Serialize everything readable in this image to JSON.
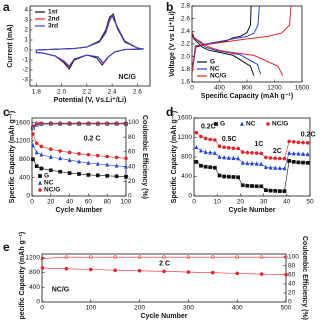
{
  "chart_data": [
    {
      "type": "line",
      "panel": "a",
      "xlabel": "Potential (V, Vs.Li⁺/Li)",
      "ylabel": "Current (mA)",
      "xlim": [
        1.75,
        2.7
      ],
      "xticks": [
        1.8,
        {
          "value": 2,
          "label": "2.0"
        },
        2.2,
        2.4,
        2.6
      ],
      "ylim": [
        -3.6,
        4.4
      ],
      "yticks": [
        -3,
        -2,
        -1,
        0,
        1,
        2,
        3,
        4
      ],
      "legend": "upper left",
      "annotations": [
        "NC/G"
      ],
      "series": [
        {
          "name": "1st",
          "color": "#111111",
          "x": [
            2.65,
            2.5,
            2.42,
            2.36,
            2.32,
            2.28,
            2.2,
            2.1,
            2.06,
            2.02,
            1.95,
            1.85,
            1.8,
            1.8,
            1.9,
            2.0,
            2.1,
            2.2,
            2.3,
            2.35,
            2.38,
            2.41,
            2.44,
            2.5,
            2.6,
            2.65
          ],
          "values": [
            0.1,
            0.05,
            -0.2,
            -0.8,
            -1.5,
            -0.8,
            -0.5,
            -1.0,
            -1.9,
            -1.3,
            -0.6,
            -0.3,
            -0.25,
            0,
            0.05,
            0.1,
            0.15,
            0.3,
            0.9,
            2.0,
            3.3,
            3.6,
            2.2,
            0.8,
            0.2,
            0.1
          ]
        },
        {
          "name": "2nd",
          "color": "#e3242b",
          "x": [
            2.65,
            2.5,
            2.42,
            2.37,
            2.33,
            2.29,
            2.2,
            2.1,
            2.06,
            2.02,
            1.95,
            1.85,
            1.8,
            1.8,
            1.9,
            2.0,
            2.1,
            2.2,
            2.3,
            2.35,
            2.38,
            2.4,
            2.44,
            2.5,
            2.6,
            2.65
          ],
          "values": [
            0.1,
            0.05,
            -0.2,
            -0.7,
            -1.4,
            -0.7,
            -0.5,
            -0.9,
            -1.7,
            -1.2,
            -0.6,
            -0.3,
            -0.25,
            0,
            0.05,
            0.1,
            0.15,
            0.3,
            0.8,
            1.8,
            3.0,
            3.5,
            2.4,
            0.9,
            0.2,
            0.1
          ]
        },
        {
          "name": "3rd",
          "color": "#2846d6",
          "x": [
            2.65,
            2.5,
            2.42,
            2.37,
            2.33,
            2.29,
            2.2,
            2.1,
            2.06,
            2.02,
            1.95,
            1.85,
            1.8,
            1.8,
            1.9,
            2.0,
            2.1,
            2.2,
            2.3,
            2.35,
            2.38,
            2.4,
            2.44,
            2.5,
            2.6,
            2.65
          ],
          "values": [
            0.1,
            0.05,
            -0.2,
            -0.7,
            -1.3,
            -0.7,
            -0.5,
            -0.9,
            -1.6,
            -1.1,
            -0.6,
            -0.3,
            -0.25,
            0,
            0.05,
            0.1,
            0.15,
            0.3,
            0.8,
            1.7,
            2.9,
            3.4,
            2.3,
            0.9,
            0.2,
            0.1
          ]
        }
      ]
    },
    {
      "type": "line",
      "panel": "b",
      "xlabel": "Specific Capacity (mAh g⁻¹)",
      "ylabel": "Voltage (V vs Li⁺/Li)",
      "xlim": [
        0,
        1600
      ],
      "xticks": [
        0,
        400,
        800,
        1200,
        1600
      ],
      "ylim": [
        1.6,
        2.8
      ],
      "yticks": [
        1.6,
        1.8,
        {
          "value": 2,
          "label": "2.0"
        },
        2.2,
        2.4,
        2.6,
        2.8
      ],
      "legend": "lower left",
      "annotations": [],
      "series": [
        {
          "name": "G",
          "color": "#111111",
          "x": [
            0,
            30,
            150,
            250,
            350,
            600,
            850,
            900,
            null,
            0,
            50,
            300,
            500,
            600,
            700,
            800,
            850,
            860
          ],
          "values": [
            2.35,
            2.28,
            2.15,
            2.1,
            2.08,
            2.02,
            1.85,
            1.7,
            null,
            1.75,
            2.15,
            2.22,
            2.25,
            2.3,
            2.32,
            2.38,
            2.5,
            2.8
          ]
        },
        {
          "name": "NC",
          "color": "#2846d6",
          "x": [
            0,
            30,
            200,
            350,
            450,
            700,
            950,
            1000,
            null,
            0,
            50,
            300,
            600,
            800,
            900,
            960,
            980
          ],
          "values": [
            2.38,
            2.3,
            2.15,
            2.1,
            2.08,
            2.03,
            1.88,
            1.72,
            null,
            1.75,
            2.17,
            2.22,
            2.28,
            2.32,
            2.37,
            2.5,
            2.8
          ]
        },
        {
          "name": "NC/G",
          "color": "#e3242b",
          "x": [
            0,
            30,
            250,
            400,
            500,
            900,
            1250,
            1320,
            null,
            0,
            60,
            400,
            800,
            1100,
            1300,
            1420,
            1440
          ],
          "values": [
            2.4,
            2.3,
            2.15,
            2.1,
            2.08,
            2.02,
            1.85,
            1.7,
            null,
            1.75,
            2.17,
            2.22,
            2.28,
            2.32,
            2.37,
            2.5,
            2.8
          ]
        }
      ]
    },
    {
      "type": "scatter",
      "panel": "c",
      "xlabel": "Cycle Number",
      "ylabel": "Specific Capacity (mAh g⁻¹)",
      "y2label": "Coulombic Efficiency (%)",
      "xlim": [
        0,
        100
      ],
      "xticks": [
        0,
        20,
        40,
        60,
        80,
        100
      ],
      "ylim": [
        0,
        1700
      ],
      "yticks": [
        0,
        400,
        800,
        1200,
        1600
      ],
      "y2lim": [
        0,
        106
      ],
      "y2ticks": [
        0,
        20,
        40,
        60,
        80,
        100
      ],
      "legend": "lower left",
      "annotations": [
        "0.2 C"
      ],
      "x": [
        1,
        5,
        10,
        20,
        30,
        40,
        50,
        60,
        70,
        80,
        90,
        100
      ],
      "series": [
        {
          "name": "G",
          "color": "#111111",
          "marker": "square",
          "values": [
            800,
            650,
            600,
            560,
            530,
            500,
            480,
            460,
            450,
            440,
            430,
            420
          ],
          "efficiency": [
            92,
            97,
            98,
            98,
            98,
            98,
            98,
            98,
            98,
            98,
            98,
            98
          ]
        },
        {
          "name": "NC",
          "color": "#2846d6",
          "marker": "triangle",
          "values": [
            1100,
            950,
            900,
            850,
            820,
            780,
            750,
            720,
            700,
            680,
            660,
            640
          ],
          "efficiency": [
            94,
            98,
            98,
            99,
            99,
            99,
            99,
            99,
            99,
            99,
            99,
            99
          ]
        },
        {
          "name": "NC/G",
          "color": "#e3242b",
          "marker": "circle",
          "values": [
            1350,
            1150,
            1080,
            1020,
            980,
            950,
            920,
            900,
            880,
            860,
            840,
            820
          ],
          "efficiency": [
            95,
            99,
            99,
            99,
            99,
            99,
            99,
            99,
            99,
            99,
            99,
            99
          ]
        }
      ]
    },
    {
      "type": "scatter",
      "panel": "d",
      "xlabel": "Cycle Number",
      "ylabel": "Specific Capacity (mAh g⁻¹)",
      "xlim": [
        0,
        50
      ],
      "xticks": [
        0,
        10,
        20,
        30,
        40,
        50
      ],
      "ylim": [
        0,
        1600
      ],
      "yticks": [
        0,
        400,
        800,
        1200,
        1600
      ],
      "legend": "upper center",
      "annotations": [
        "0.2C",
        "0.5C",
        "1C",
        "2C",
        "0.2C"
      ],
      "x": [
        1,
        3,
        5,
        7,
        9,
        11,
        13,
        15,
        17,
        19,
        21,
        23,
        25,
        27,
        29,
        31,
        33,
        35,
        37,
        39,
        41,
        43,
        45,
        47,
        49
      ],
      "series": [
        {
          "name": "G",
          "color": "#111111",
          "marker": "square",
          "values": [
            700,
            620,
            600,
            590,
            580,
            420,
            400,
            395,
            390,
            385,
            220,
            210,
            205,
            200,
            200,
            120,
            110,
            105,
            100,
            100,
            720,
            700,
            690,
            685,
            680
          ]
        },
        {
          "name": "NC",
          "color": "#2846d6",
          "marker": "triangle",
          "values": [
            1000,
            930,
            900,
            890,
            880,
            800,
            790,
            780,
            775,
            770,
            680,
            670,
            665,
            660,
            655,
            590,
            580,
            575,
            570,
            565,
            880,
            870,
            865,
            860,
            855
          ]
        },
        {
          "name": "NC/G",
          "color": "#e3242b",
          "marker": "circle",
          "values": [
            1300,
            1220,
            1180,
            1160,
            1150,
            1020,
            1000,
            990,
            980,
            975,
            900,
            890,
            885,
            880,
            875,
            790,
            780,
            775,
            770,
            765,
            1120,
            1110,
            1100,
            1095,
            1090
          ]
        }
      ]
    },
    {
      "type": "scatter",
      "panel": "e",
      "xlabel": "Cycle Number",
      "ylabel": "Specific Capacity (mAh g⁻¹)",
      "y2label": "Coulombic Efficiency (%)",
      "xlim": [
        0,
        500
      ],
      "xticks": [
        0,
        100,
        200,
        300,
        400,
        500
      ],
      "ylim": [
        0,
        1300
      ],
      "yticks": [
        0,
        400,
        800,
        1200
      ],
      "y2lim": [
        0,
        106
      ],
      "y2ticks": [
        0,
        20,
        40,
        60,
        80,
        100
      ],
      "annotations": [
        "2 C",
        "NC/G"
      ],
      "x": [
        1,
        50,
        100,
        150,
        200,
        250,
        300,
        350,
        400,
        450,
        500
      ],
      "series": [
        {
          "color": "#e3242b",
          "marker": "circle",
          "values": [
            920,
            900,
            880,
            860,
            845,
            830,
            810,
            795,
            775,
            755,
            740
          ],
          "efficiency": [
            96,
            99,
            99,
            99,
            99,
            99,
            99,
            99,
            99,
            99,
            99
          ]
        }
      ]
    }
  ]
}
